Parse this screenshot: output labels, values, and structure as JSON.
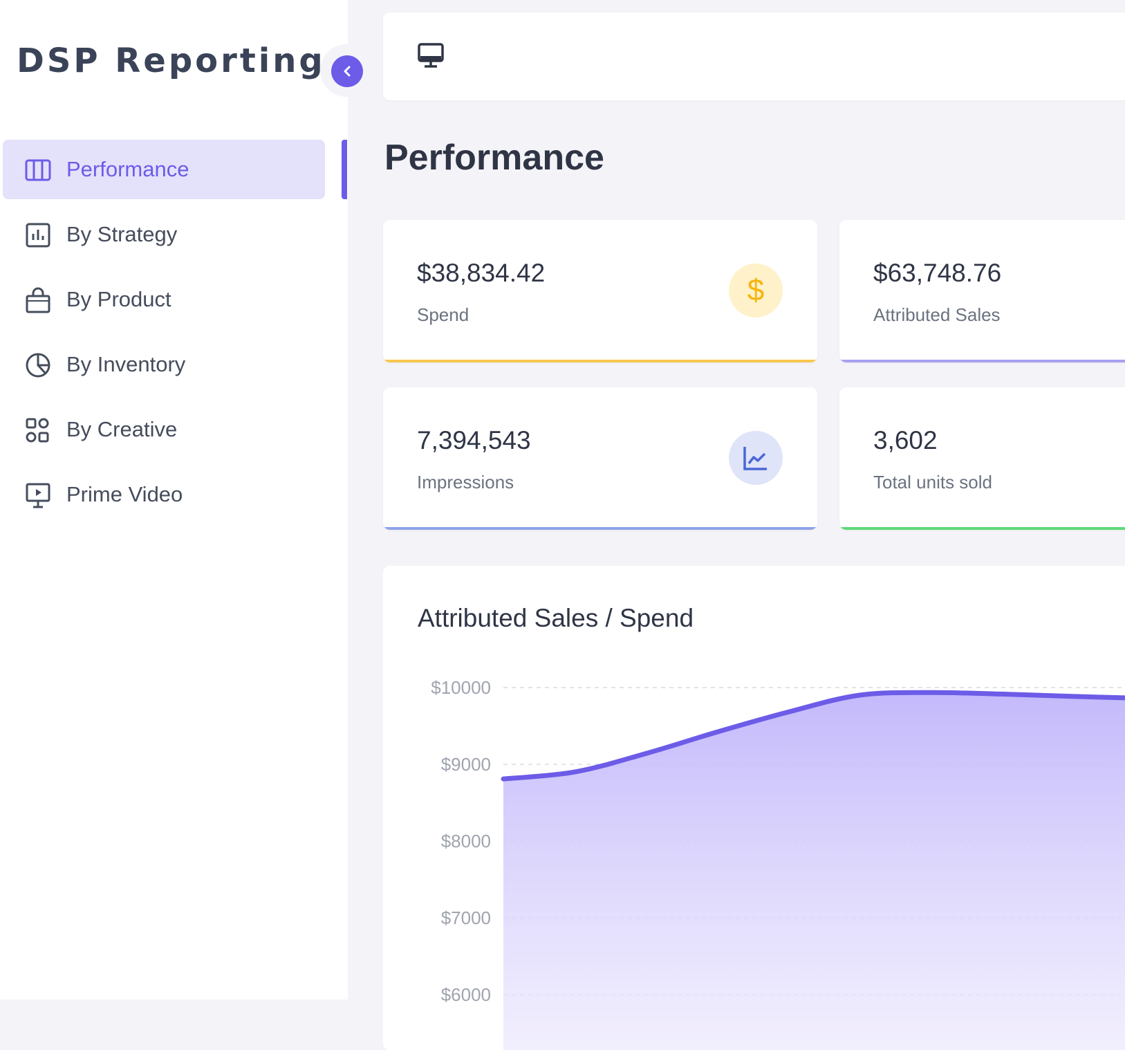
{
  "sidebar": {
    "brand": "DSP Reporting",
    "items": [
      {
        "label": "Performance",
        "icon": "columns-icon",
        "active": true
      },
      {
        "label": "By Strategy",
        "icon": "bar-chart-icon",
        "active": false
      },
      {
        "label": "By Product",
        "icon": "shopping-bag-icon",
        "active": false
      },
      {
        "label": "By Inventory",
        "icon": "pie-chart-icon",
        "active": false
      },
      {
        "label": "By Creative",
        "icon": "grid-icon",
        "active": false
      },
      {
        "label": "Prime Video",
        "icon": "presentation-icon",
        "active": false
      }
    ]
  },
  "header": {
    "icon": "monitor-icon"
  },
  "page": {
    "title": "Performance"
  },
  "stats": [
    {
      "value": "$38,834.42",
      "caption": "Spend",
      "icon": "dollar-icon",
      "accent": "#f9c74f"
    },
    {
      "value": "$63,748.76",
      "caption": "Attributed Sales",
      "accent": "#a6a1f0"
    },
    {
      "value": "7,394,543",
      "caption": "Impressions",
      "icon": "line-chart-icon",
      "accent": "#8fa3e8"
    },
    {
      "value": "3,602",
      "caption": "Total units sold",
      "accent": "#5fd97a"
    }
  ],
  "colors": {
    "accent": "#6c5ce7",
    "active_bg": "#e4e1fb",
    "area_fill": "#c4b9fb"
  },
  "chart_data": {
    "type": "area",
    "title": "Attributed Sales / Spend",
    "yticks": [
      "$10000",
      "$9000",
      "$8000",
      "$7000",
      "$6000"
    ],
    "ylim": [
      6000,
      10000
    ],
    "values": [
      8810,
      8900,
      9140,
      9420,
      9680,
      9900,
      9935,
      9915,
      9885,
      9860
    ],
    "grid": true
  }
}
